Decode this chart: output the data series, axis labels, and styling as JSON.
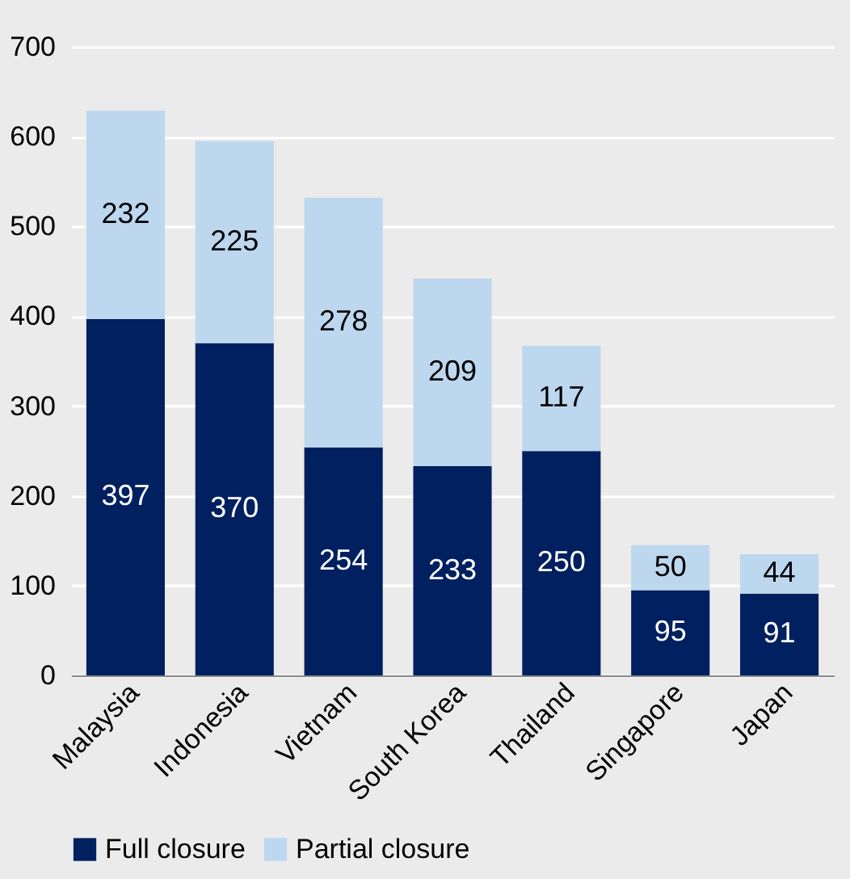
{
  "chart_data": {
    "type": "bar",
    "stacked": true,
    "categories": [
      "Malaysia",
      "Indonesia",
      "Vietnam",
      "South Korea",
      "Thailand",
      "Singapore",
      "Japan"
    ],
    "series": [
      {
        "name": "Full closure",
        "color": "#002060",
        "values": [
          397,
          370,
          254,
          233,
          250,
          95,
          91
        ]
      },
      {
        "name": "Partial closure",
        "color": "#bdd7ee",
        "values": [
          232,
          225,
          278,
          209,
          117,
          50,
          44
        ]
      }
    ],
    "ylim": [
      0,
      700
    ],
    "yticks": [
      0,
      100,
      200,
      300,
      400,
      500,
      600,
      700
    ],
    "grid": "y",
    "legend": "bottom",
    "data_labels": true
  }
}
